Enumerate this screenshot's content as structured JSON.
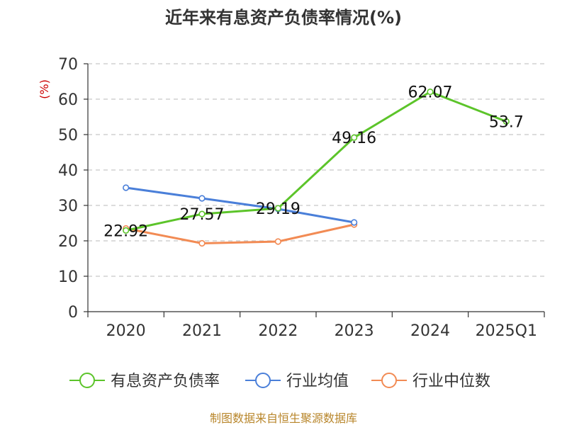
{
  "chart_data": {
    "type": "line",
    "title": "近年来有息资产负债率情况(%)",
    "ylabel": "(%)",
    "xlabel": "",
    "categories": [
      "2020",
      "2021",
      "2022",
      "2023",
      "2024",
      "2025Q1"
    ],
    "ylim": [
      0,
      70
    ],
    "yticks": [
      0,
      10,
      20,
      30,
      40,
      50,
      60,
      70
    ],
    "grid": true,
    "legend_position": "bottom",
    "series": [
      {
        "name": "有息资产负债率",
        "color": "#5cc42a",
        "values": [
          22.92,
          27.57,
          29.19,
          49.16,
          62.07,
          53.7
        ],
        "labels": [
          "22.92",
          "27.57",
          "29.19",
          "49.16",
          "62.07",
          "53.7"
        ],
        "show_labels": true
      },
      {
        "name": "行业均值",
        "color": "#4a7fd9",
        "values": [
          35.0,
          32.0,
          29.0,
          25.2,
          null,
          null
        ],
        "show_labels": false
      },
      {
        "name": "行业中位数",
        "color": "#f28b54",
        "values": [
          23.5,
          19.3,
          19.8,
          24.6,
          null,
          null
        ],
        "show_labels": false
      }
    ]
  },
  "footer": {
    "source": "制图数据来自恒生聚源数据库"
  }
}
